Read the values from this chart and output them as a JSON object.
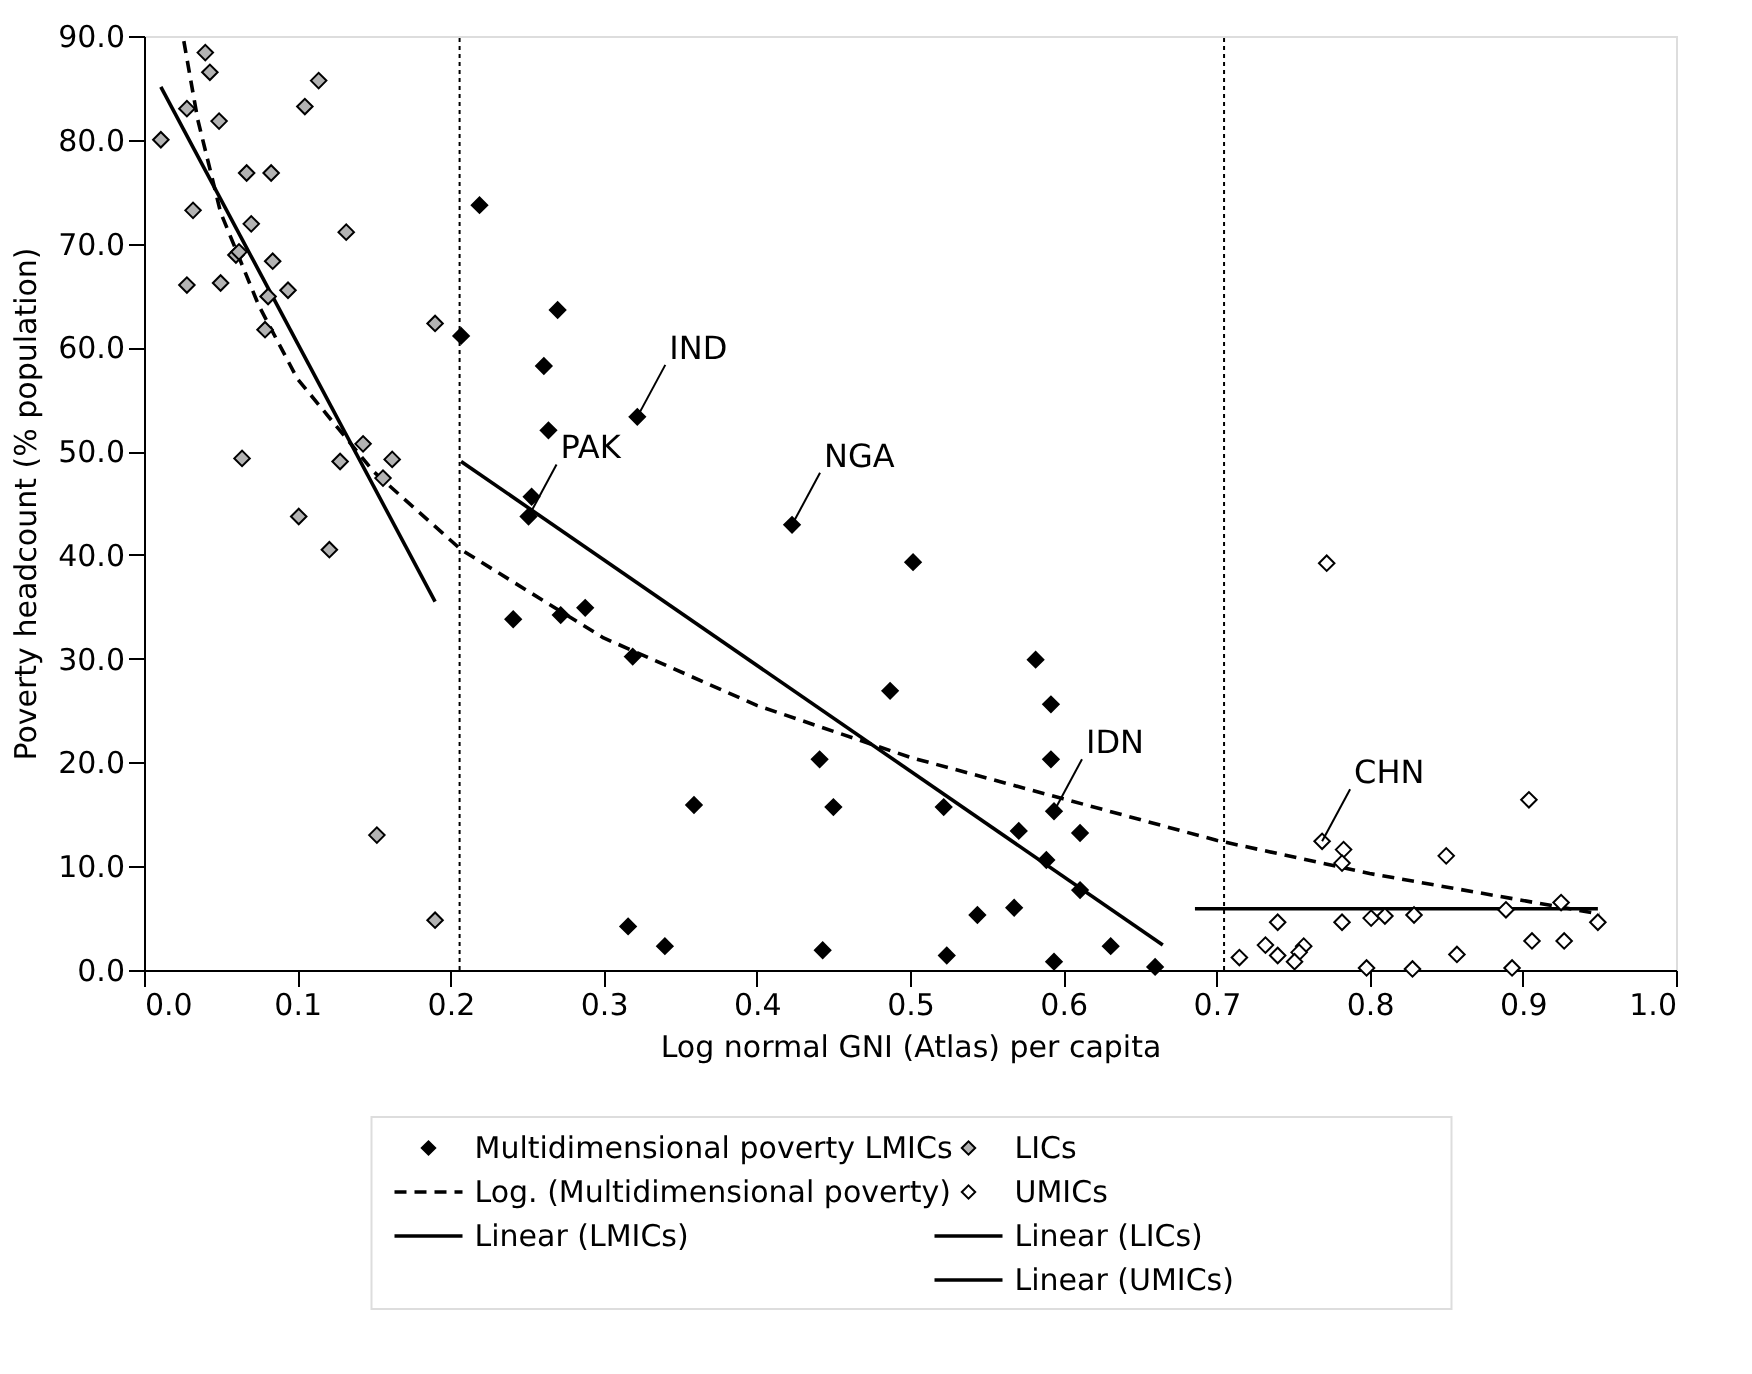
{
  "chart_data": {
    "type": "scatter",
    "xlabel": "Log normal GNI (Atlas) per capita",
    "ylabel": "Poverty headcount (% population)",
    "xlim": [
      0,
      1
    ],
    "ylim": [
      0,
      90
    ],
    "xticks": [
      {
        "value": 0,
        "label": "0.0"
      },
      {
        "value": 0.1,
        "label": "0.1"
      },
      {
        "value": 0.2,
        "label": "0.2"
      },
      {
        "value": 0.3,
        "label": "0.3"
      },
      {
        "value": 0.4,
        "label": "0.4"
      },
      {
        "value": 0.5,
        "label": "0.5"
      },
      {
        "value": 0.6,
        "label": "0.6"
      },
      {
        "value": 0.7,
        "label": "0.7"
      },
      {
        "value": 0.8,
        "label": "0.8"
      },
      {
        "value": 0.9,
        "label": "0.9"
      },
      {
        "value": 1,
        "label": "1.0"
      }
    ],
    "yticks": [
      {
        "value": 0,
        "label": "0.0"
      },
      {
        "value": 10,
        "label": "10.0"
      },
      {
        "value": 20,
        "label": "20.0"
      },
      {
        "value": 30,
        "label": "30.0"
      },
      {
        "value": 40,
        "label": "40.0"
      },
      {
        "value": 50,
        "label": "50.0"
      },
      {
        "value": 60,
        "label": "60.0"
      },
      {
        "value": 70,
        "label": "70.0"
      },
      {
        "value": 80,
        "label": "80.0"
      },
      {
        "value": 90,
        "label": "90.0"
      }
    ],
    "grid": false,
    "legend": "bottom",
    "series": [
      {
        "name": "Multidimensional poverty LMICs",
        "marker": "diamond",
        "color": "#000000",
        "x": [
          0.219,
          0.207,
          0.27,
          0.261,
          0.264,
          0.322,
          0.253,
          0.251,
          0.423,
          0.502,
          0.241,
          0.272,
          0.288,
          0.319,
          0.487,
          0.441,
          0.359,
          0.45,
          0.522,
          0.316,
          0.34,
          0.443,
          0.524,
          0.582,
          0.592,
          0.592,
          0.594,
          0.611,
          0.571,
          0.589,
          0.611,
          0.544,
          0.568,
          0.631,
          0.594,
          0.66
        ],
        "values": [
          73.7,
          61.1,
          63.6,
          58.2,
          52.0,
          53.3,
          45.6,
          43.7,
          42.9,
          39.3,
          33.8,
          34.2,
          34.9,
          30.2,
          26.9,
          20.3,
          15.9,
          15.7,
          15.7,
          4.2,
          2.3,
          1.9,
          1.4,
          29.9,
          25.6,
          20.3,
          15.3,
          13.2,
          13.4,
          10.6,
          7.7,
          5.3,
          6.0,
          2.3,
          0.8,
          0.3
        ]
      },
      {
        "name": "Log. (Multidimensional poverty)",
        "type": "line",
        "line_style": "dashed",
        "color": "#000000",
        "x": [
          0.026,
          0.035,
          0.05,
          0.075,
          0.1,
          0.15,
          0.207,
          0.3,
          0.4,
          0.5,
          0.6,
          0.7,
          0.8,
          0.9,
          0.95
        ],
        "values": [
          89.5,
          82,
          73,
          64,
          57,
          48,
          40.5,
          32,
          25.5,
          20.5,
          16.5,
          12.5,
          9.3,
          6.7,
          5.4
        ]
      },
      {
        "name": "Linear (LMICs)",
        "type": "line",
        "line_style": "solid",
        "color": "#000000",
        "x": [
          0.207,
          0.665
        ],
        "values": [
          49.0,
          2.4
        ]
      },
      {
        "name": "LICs",
        "marker": "diamond",
        "color": "#b3b3b3",
        "x": [
          0.011,
          0.028,
          0.04,
          0.043,
          0.049,
          0.032,
          0.028,
          0.05,
          0.067,
          0.083,
          0.07,
          0.06,
          0.062,
          0.084,
          0.081,
          0.094,
          0.079,
          0.064,
          0.105,
          0.114,
          0.132,
          0.101,
          0.121,
          0.128,
          0.143,
          0.156,
          0.162,
          0.19,
          0.152,
          0.19
        ],
        "values": [
          80.0,
          83.0,
          88.4,
          86.5,
          81.8,
          73.2,
          66.0,
          66.2,
          76.8,
          76.8,
          71.9,
          68.9,
          69.2,
          68.3,
          64.9,
          65.5,
          61.7,
          49.3,
          83.2,
          85.7,
          71.1,
          43.7,
          40.5,
          49.0,
          50.7,
          47.4,
          49.2,
          62.3,
          13.0,
          4.8
        ]
      },
      {
        "name": "UMICs",
        "marker": "diamond",
        "color": "#ffffff",
        "x": [
          0.772,
          0.769,
          0.783,
          0.782,
          0.85,
          0.904,
          0.925,
          0.889,
          0.949,
          0.906,
          0.927,
          0.74,
          0.782,
          0.801,
          0.81,
          0.829,
          0.732,
          0.74,
          0.757,
          0.754,
          0.751,
          0.715,
          0.798,
          0.828,
          0.857,
          0.893
        ],
        "values": [
          39.2,
          12.4,
          11.6,
          10.3,
          11.0,
          16.4,
          6.5,
          5.8,
          4.6,
          2.8,
          2.8,
          4.6,
          4.6,
          5.0,
          5.2,
          5.3,
          2.4,
          1.4,
          2.3,
          1.7,
          0.8,
          1.2,
          0.2,
          0.1,
          1.5,
          0.2
        ]
      },
      {
        "name": "Linear (LICs)",
        "type": "line",
        "line_style": "solid",
        "color": "#000000",
        "x": [
          0.011,
          0.19
        ],
        "values": [
          85.1,
          35.5
        ]
      },
      {
        "name": "Linear (UMICs)",
        "type": "line",
        "line_style": "solid",
        "color": "#000000",
        "x": [
          0.686,
          0.949
        ],
        "values": [
          5.9,
          5.9
        ]
      }
    ],
    "ref_lines": [
      {
        "axis": "x",
        "value": 0.206,
        "line_style": "dotted",
        "color": "#000000"
      },
      {
        "axis": "x",
        "value": 0.705,
        "line_style": "dotted",
        "color": "#000000"
      }
    ],
    "annotations": [
      {
        "text": "IND",
        "x": 0.322,
        "y": 53.3
      },
      {
        "text": "PAK",
        "x": 0.251,
        "y": 43.7
      },
      {
        "text": "NGA",
        "x": 0.423,
        "y": 42.9
      },
      {
        "text": "IDN",
        "x": 0.594,
        "y": 15.3
      },
      {
        "text": "CHN",
        "x": 0.769,
        "y": 12.4
      }
    ]
  }
}
